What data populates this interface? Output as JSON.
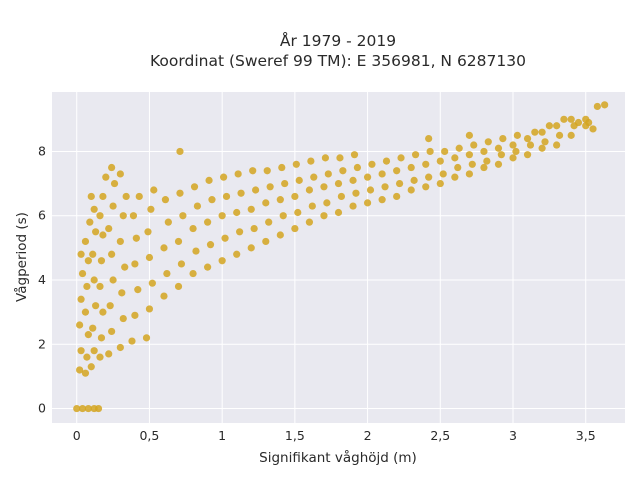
{
  "chart_data": {
    "type": "scatter",
    "title": "År 1979 - 2019",
    "subtitle": "Koordinat (Sweref 99 TM): E 356981, N 6287130",
    "xlabel": "Signifikant våghöjd (m)",
    "ylabel": "Vågperiod (s)",
    "xlim": [
      -0.17,
      3.77
    ],
    "ylim": [
      -0.45,
      9.85
    ],
    "xticks": [
      0,
      0.5,
      1,
      1.5,
      2,
      2.5,
      3,
      3.5
    ],
    "xtick_labels": [
      "0",
      "0,5",
      "1",
      "1,5",
      "2",
      "2,5",
      "3",
      "3,5"
    ],
    "yticks": [
      0,
      2,
      4,
      6,
      8
    ],
    "ytick_labels": [
      "0",
      "2",
      "4",
      "6",
      "8"
    ],
    "grid": true,
    "marker_color": "#D4A520",
    "background_color": "#E9E9F0",
    "series": [
      {
        "points": [
          [
            0.0,
            0.0
          ],
          [
            0.04,
            0.0
          ],
          [
            0.08,
            0.0
          ],
          [
            0.12,
            0.0
          ],
          [
            0.15,
            0.0
          ],
          [
            0.02,
            1.2
          ],
          [
            0.03,
            1.8
          ],
          [
            0.02,
            2.6
          ],
          [
            0.03,
            3.4
          ],
          [
            0.04,
            4.2
          ],
          [
            0.03,
            4.8
          ],
          [
            0.06,
            1.1
          ],
          [
            0.07,
            1.6
          ],
          [
            0.08,
            2.3
          ],
          [
            0.06,
            3.0
          ],
          [
            0.07,
            3.8
          ],
          [
            0.08,
            4.6
          ],
          [
            0.06,
            5.2
          ],
          [
            0.09,
            5.8
          ],
          [
            0.1,
            1.3
          ],
          [
            0.12,
            1.8
          ],
          [
            0.11,
            2.5
          ],
          [
            0.13,
            3.2
          ],
          [
            0.12,
            4.0
          ],
          [
            0.11,
            4.8
          ],
          [
            0.13,
            5.5
          ],
          [
            0.12,
            6.2
          ],
          [
            0.1,
            6.6
          ],
          [
            0.16,
            1.6
          ],
          [
            0.17,
            2.2
          ],
          [
            0.18,
            3.0
          ],
          [
            0.16,
            3.8
          ],
          [
            0.17,
            4.6
          ],
          [
            0.18,
            5.4
          ],
          [
            0.16,
            6.0
          ],
          [
            0.18,
            6.6
          ],
          [
            0.2,
            7.2
          ],
          [
            0.22,
            1.7
          ],
          [
            0.24,
            2.4
          ],
          [
            0.23,
            3.2
          ],
          [
            0.25,
            4.0
          ],
          [
            0.24,
            4.8
          ],
          [
            0.22,
            5.6
          ],
          [
            0.25,
            6.3
          ],
          [
            0.26,
            7.0
          ],
          [
            0.24,
            7.5
          ],
          [
            0.3,
            1.9
          ],
          [
            0.32,
            2.8
          ],
          [
            0.31,
            3.6
          ],
          [
            0.33,
            4.4
          ],
          [
            0.3,
            5.2
          ],
          [
            0.32,
            6.0
          ],
          [
            0.34,
            6.6
          ],
          [
            0.3,
            7.3
          ],
          [
            0.38,
            2.1
          ],
          [
            0.4,
            2.9
          ],
          [
            0.42,
            3.7
          ],
          [
            0.4,
            4.5
          ],
          [
            0.41,
            5.3
          ],
          [
            0.39,
            6.0
          ],
          [
            0.43,
            6.6
          ],
          [
            0.48,
            2.2
          ],
          [
            0.5,
            3.1
          ],
          [
            0.52,
            3.9
          ],
          [
            0.5,
            4.7
          ],
          [
            0.49,
            5.5
          ],
          [
            0.51,
            6.2
          ],
          [
            0.53,
            6.8
          ],
          [
            0.6,
            3.5
          ],
          [
            0.62,
            4.2
          ],
          [
            0.6,
            5.0
          ],
          [
            0.63,
            5.8
          ],
          [
            0.61,
            6.5
          ],
          [
            0.7,
            3.8
          ],
          [
            0.72,
            4.5
          ],
          [
            0.7,
            5.2
          ],
          [
            0.73,
            6.0
          ],
          [
            0.71,
            6.7
          ],
          [
            0.71,
            8.0
          ],
          [
            0.8,
            4.2
          ],
          [
            0.82,
            4.9
          ],
          [
            0.8,
            5.6
          ],
          [
            0.83,
            6.3
          ],
          [
            0.81,
            6.9
          ],
          [
            0.9,
            4.4
          ],
          [
            0.92,
            5.1
          ],
          [
            0.9,
            5.8
          ],
          [
            0.93,
            6.5
          ],
          [
            0.91,
            7.1
          ],
          [
            1.0,
            4.6
          ],
          [
            1.02,
            5.3
          ],
          [
            1.0,
            6.0
          ],
          [
            1.03,
            6.6
          ],
          [
            1.01,
            7.2
          ],
          [
            1.1,
            4.8
          ],
          [
            1.12,
            5.5
          ],
          [
            1.1,
            6.1
          ],
          [
            1.13,
            6.7
          ],
          [
            1.11,
            7.3
          ],
          [
            1.2,
            5.0
          ],
          [
            1.22,
            5.6
          ],
          [
            1.2,
            6.2
          ],
          [
            1.23,
            6.8
          ],
          [
            1.21,
            7.4
          ],
          [
            1.3,
            5.2
          ],
          [
            1.32,
            5.8
          ],
          [
            1.3,
            6.4
          ],
          [
            1.33,
            6.9
          ],
          [
            1.31,
            7.4
          ],
          [
            1.4,
            5.4
          ],
          [
            1.42,
            6.0
          ],
          [
            1.4,
            6.5
          ],
          [
            1.43,
            7.0
          ],
          [
            1.41,
            7.5
          ],
          [
            1.5,
            5.6
          ],
          [
            1.52,
            6.1
          ],
          [
            1.5,
            6.6
          ],
          [
            1.53,
            7.1
          ],
          [
            1.51,
            7.6
          ],
          [
            1.6,
            5.8
          ],
          [
            1.62,
            6.3
          ],
          [
            1.6,
            6.8
          ],
          [
            1.63,
            7.2
          ],
          [
            1.61,
            7.7
          ],
          [
            1.7,
            6.0
          ],
          [
            1.72,
            6.4
          ],
          [
            1.7,
            6.9
          ],
          [
            1.73,
            7.3
          ],
          [
            1.71,
            7.8
          ],
          [
            1.8,
            6.1
          ],
          [
            1.82,
            6.6
          ],
          [
            1.8,
            7.0
          ],
          [
            1.83,
            7.4
          ],
          [
            1.81,
            7.8
          ],
          [
            1.9,
            6.3
          ],
          [
            1.92,
            6.7
          ],
          [
            1.9,
            7.1
          ],
          [
            1.93,
            7.5
          ],
          [
            1.91,
            7.9
          ],
          [
            2.0,
            6.4
          ],
          [
            2.02,
            6.8
          ],
          [
            2.0,
            7.2
          ],
          [
            2.03,
            7.6
          ],
          [
            2.1,
            6.5
          ],
          [
            2.12,
            6.9
          ],
          [
            2.1,
            7.3
          ],
          [
            2.13,
            7.7
          ],
          [
            2.2,
            6.6
          ],
          [
            2.22,
            7.0
          ],
          [
            2.2,
            7.4
          ],
          [
            2.23,
            7.8
          ],
          [
            2.3,
            6.8
          ],
          [
            2.32,
            7.1
          ],
          [
            2.3,
            7.5
          ],
          [
            2.33,
            7.9
          ],
          [
            2.4,
            6.9
          ],
          [
            2.42,
            7.2
          ],
          [
            2.4,
            7.6
          ],
          [
            2.43,
            8.0
          ],
          [
            2.42,
            8.4
          ],
          [
            2.5,
            7.0
          ],
          [
            2.52,
            7.3
          ],
          [
            2.5,
            7.7
          ],
          [
            2.53,
            8.0
          ],
          [
            2.6,
            7.2
          ],
          [
            2.62,
            7.5
          ],
          [
            2.6,
            7.8
          ],
          [
            2.63,
            8.1
          ],
          [
            2.7,
            7.3
          ],
          [
            2.72,
            7.6
          ],
          [
            2.7,
            7.9
          ],
          [
            2.73,
            8.2
          ],
          [
            2.7,
            8.5
          ],
          [
            2.8,
            7.5
          ],
          [
            2.82,
            7.7
          ],
          [
            2.8,
            8.0
          ],
          [
            2.83,
            8.3
          ],
          [
            2.9,
            7.6
          ],
          [
            2.92,
            7.9
          ],
          [
            2.9,
            8.1
          ],
          [
            2.93,
            8.4
          ],
          [
            3.0,
            7.8
          ],
          [
            3.02,
            8.0
          ],
          [
            3.0,
            8.2
          ],
          [
            3.03,
            8.5
          ],
          [
            3.1,
            7.9
          ],
          [
            3.12,
            8.2
          ],
          [
            3.1,
            8.4
          ],
          [
            3.15,
            8.6
          ],
          [
            3.2,
            8.1
          ],
          [
            3.22,
            8.3
          ],
          [
            3.2,
            8.6
          ],
          [
            3.25,
            8.8
          ],
          [
            3.3,
            8.2
          ],
          [
            3.32,
            8.5
          ],
          [
            3.3,
            8.8
          ],
          [
            3.35,
            9.0
          ],
          [
            3.4,
            8.5
          ],
          [
            3.42,
            8.8
          ],
          [
            3.4,
            9.0
          ],
          [
            3.45,
            8.9
          ],
          [
            3.5,
            8.8
          ],
          [
            3.52,
            8.9
          ],
          [
            3.5,
            9.0
          ],
          [
            3.55,
            8.7
          ],
          [
            3.58,
            9.4
          ],
          [
            3.63,
            9.45
          ]
        ]
      }
    ]
  }
}
